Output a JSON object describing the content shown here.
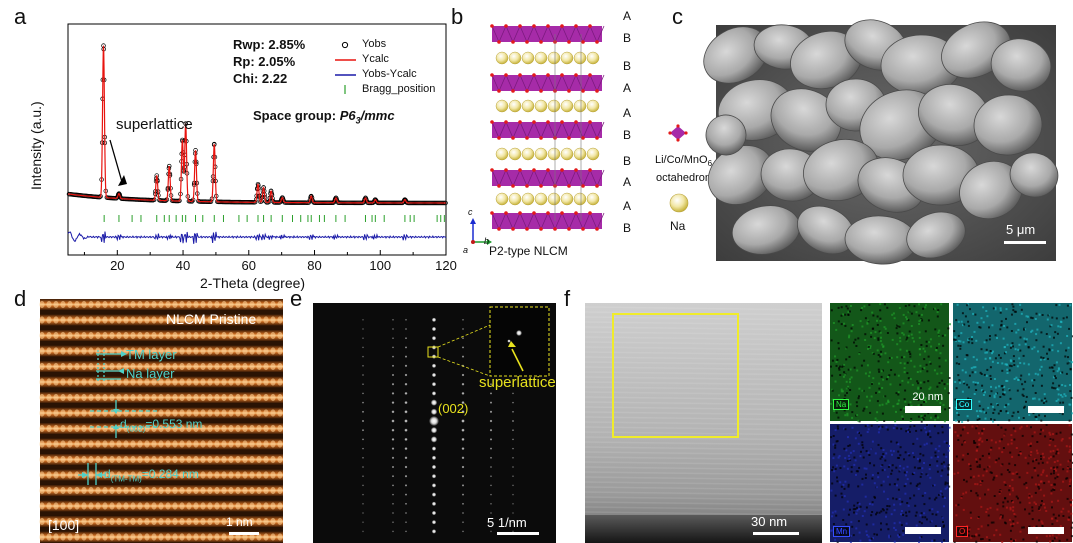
{
  "panel_labels": {
    "a": "a",
    "b": "b",
    "c": "c",
    "d": "d",
    "e": "e",
    "f": "f"
  },
  "chart_data": {
    "type": "line",
    "xlabel": "2-Theta (degree)",
    "ylabel": "Intensity (a.u.)",
    "xlim": [
      5,
      120
    ],
    "x_ticks": [
      20,
      40,
      60,
      80,
      100,
      120
    ],
    "stats": [
      "Rwp: 2.85%",
      "Rp: 2.05%",
      "Chi: 2.22"
    ],
    "space_group_prefix": "Space group: ",
    "space_group": "P6",
    "space_group_sub": "3",
    "space_group_suffix": "/mmc",
    "annotation": "superlattice",
    "legend": [
      "Yobs",
      "Ycalc",
      "Yobs-Ycalc",
      "Bragg_position"
    ],
    "legend_position": "top-right",
    "series_colors": {
      "Yobs": "#000000",
      "Ycalc": "#e8140f",
      "Yobs-Ycalc": "#1a1aa8",
      "Bragg_position": "#2ca02c"
    },
    "peaks": [
      {
        "x": 15.8,
        "y": 0.92
      },
      {
        "x": 20.5,
        "y": 0.03
      },
      {
        "x": 32.0,
        "y": 0.15
      },
      {
        "x": 35.8,
        "y": 0.21
      },
      {
        "x": 39.8,
        "y": 0.37
      },
      {
        "x": 40.8,
        "y": 0.47
      },
      {
        "x": 43.8,
        "y": 0.31
      },
      {
        "x": 49.5,
        "y": 0.35
      },
      {
        "x": 62.8,
        "y": 0.11
      },
      {
        "x": 64.5,
        "y": 0.09
      },
      {
        "x": 66.8,
        "y": 0.07
      },
      {
        "x": 70.2,
        "y": 0.03
      },
      {
        "x": 79.0,
        "y": 0.04
      },
      {
        "x": 86.5,
        "y": 0.03
      },
      {
        "x": 95.5,
        "y": 0.03
      },
      {
        "x": 98.5,
        "y": 0.02
      },
      {
        "x": 107.5,
        "y": 0.02
      }
    ],
    "bragg_positions": [
      16.0,
      20.5,
      24.5,
      27.2,
      32.0,
      34.3,
      35.8,
      37.9,
      39.8,
      40.8,
      43.8,
      46.0,
      49.5,
      52.3,
      57.0,
      59.5,
      62.8,
      64.5,
      66.8,
      70.2,
      73.3,
      75.8,
      78.0,
      79.0,
      81.5,
      83.0,
      86.5,
      89.3,
      95.5,
      97.5,
      98.5,
      101.2,
      107.5,
      109.1,
      110.3,
      117.3,
      118.4,
      119.5
    ]
  },
  "structure": {
    "stacking": [
      "A",
      "B",
      "B",
      "A",
      "A",
      "B",
      "B",
      "A",
      "A",
      "B"
    ],
    "caption": "P2-type NLCM",
    "axes": [
      "c",
      "b",
      "a"
    ],
    "legend_octa_line1": "Li/Co/MnO",
    "legend_octa_sub": "6",
    "legend_octa_line2": "octahedron",
    "legend_na": "Na",
    "colors": {
      "octa": "#a62ba8",
      "oxygen": "#e31b1b",
      "na": "#e8d56a"
    }
  },
  "sem": {
    "scale": "5 μm"
  },
  "haadf": {
    "title": "NLCM Pristine",
    "tm_layer": "TM layer",
    "na_layer": "Na layer",
    "d002_pre": "d",
    "d002_sub": "(002)",
    "d002_val": "=0.553 nm",
    "dtm_pre": "d",
    "dtm_sub": "(TM-TM)",
    "dtm_val": "=0.284 nm",
    "zone": "[100]",
    "scale": "1 nm"
  },
  "saed": {
    "spot": "(002)",
    "superlattice": "superlattice",
    "scale": "5 1/nm"
  },
  "eds": {
    "stem_scale": "30 nm",
    "map_scale": "20 nm",
    "maps": [
      {
        "element": "Na",
        "color": "#1f9a2a"
      },
      {
        "element": "Co",
        "color": "#1fb6c2"
      },
      {
        "element": "Mn",
        "color": "#2231b8"
      },
      {
        "element": "O",
        "color": "#b01818"
      }
    ]
  }
}
